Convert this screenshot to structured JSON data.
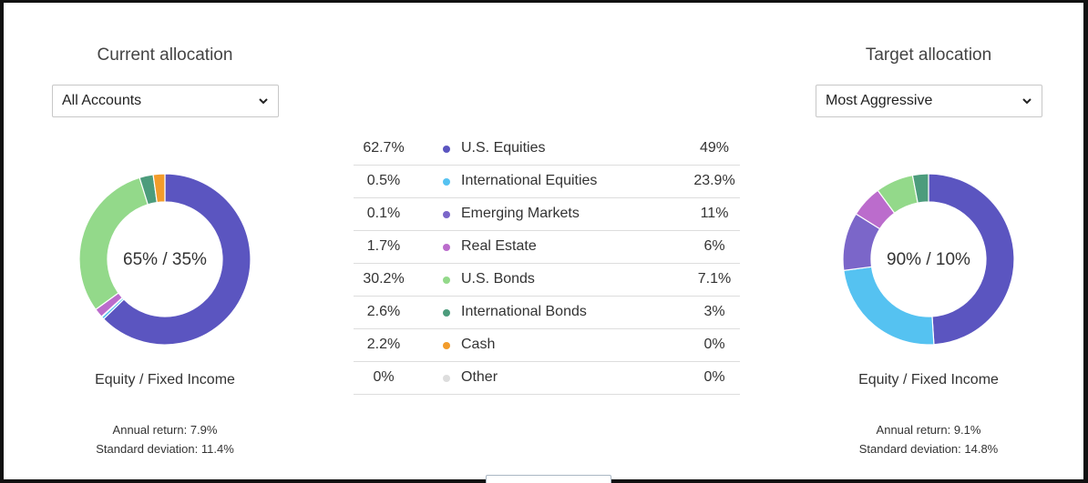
{
  "current": {
    "title": "Current allocation",
    "select_value": "All Accounts",
    "center_label": "65% / 35%",
    "caption": "Equity / Fixed Income",
    "annual_return": "Annual return: 7.9%",
    "std_dev": "Standard deviation: 11.4%"
  },
  "target": {
    "title": "Target allocation",
    "select_value": "Most Aggressive",
    "center_label": "90% / 10%",
    "caption": "Equity / Fixed Income",
    "annual_return": "Annual return: 9.1%",
    "std_dev": "Standard deviation: 14.8%"
  },
  "icons": {
    "select_arrow": "chevron-down-icon"
  },
  "chart_data": {
    "type": "pie",
    "categories": [
      "U.S. Equities",
      "International Equities",
      "Emerging Markets",
      "Real Estate",
      "U.S. Bonds",
      "International Bonds",
      "Cash",
      "Other"
    ],
    "colors": [
      "#5b55c0",
      "#55c2f1",
      "#7b66c9",
      "#bb6ccc",
      "#93d98a",
      "#4c9c7c",
      "#f29c2b",
      "#dddddd"
    ],
    "series": [
      {
        "name": "Current allocation",
        "values": [
          62.7,
          0.5,
          0.1,
          1.7,
          30.2,
          2.6,
          2.2,
          0
        ],
        "labels": [
          "62.7%",
          "0.5%",
          "0.1%",
          "1.7%",
          "30.2%",
          "2.6%",
          "2.2%",
          "0%"
        ]
      },
      {
        "name": "Target allocation",
        "values": [
          49,
          23.9,
          11,
          6,
          7.1,
          3,
          0,
          0
        ],
        "labels": [
          "49%",
          "23.9%",
          "11%",
          "6%",
          "7.1%",
          "3%",
          "0%",
          "0%"
        ]
      }
    ]
  }
}
